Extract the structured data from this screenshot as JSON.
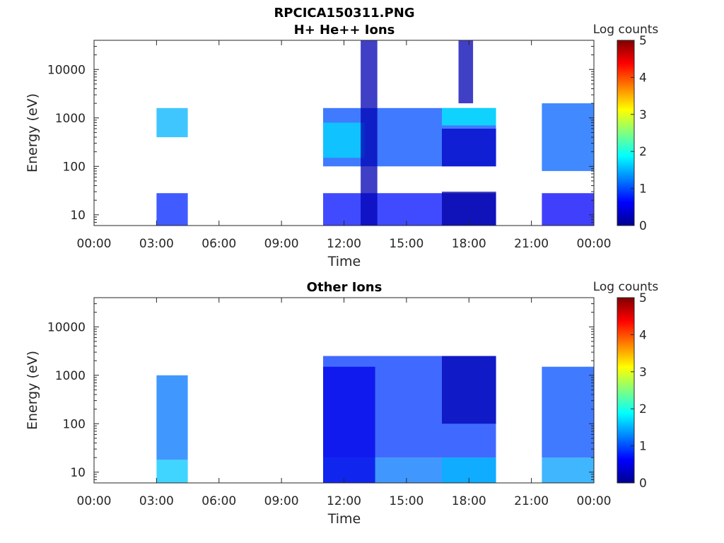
{
  "figure_title": "RPCICA150311.PNG",
  "chart_data": [
    {
      "type": "heatmap",
      "title": "H+ He++ Ions",
      "xlabel": "Time",
      "ylabel": "Energy (eV)",
      "x_range_hours": [
        0,
        24
      ],
      "x_ticks": [
        "00:00",
        "03:00",
        "06:00",
        "09:00",
        "12:00",
        "15:00",
        "18:00",
        "21:00",
        "00:00"
      ],
      "y_scale": "log",
      "y_range_eV": [
        6,
        40000
      ],
      "y_ticks": [
        10,
        100,
        1000,
        10000
      ],
      "y_tick_labels": [
        "10",
        "100",
        "1000",
        "10000"
      ],
      "colorbar": {
        "label": "Log counts",
        "min": 0,
        "max": 5,
        "ticks": [
          "0",
          "1",
          "2",
          "3",
          "4",
          "5"
        ],
        "colormap": "jet"
      },
      "bands": [
        {
          "t_start": 3.0,
          "t_end": 4.5,
          "e_min": 6,
          "e_max": 28,
          "log_counts": 0.8
        },
        {
          "t_start": 3.0,
          "t_end": 4.5,
          "e_min": 400,
          "e_max": 1600,
          "log_counts": 1.5
        },
        {
          "t_start": 11.0,
          "t_end": 19.3,
          "e_min": 6,
          "e_max": 28,
          "log_counts": 0.7
        },
        {
          "t_start": 11.0,
          "t_end": 19.3,
          "e_min": 100,
          "e_max": 1600,
          "log_counts": 1.0
        },
        {
          "t_start": 11.0,
          "t_end": 13.0,
          "e_min": 150,
          "e_max": 800,
          "log_counts": 1.7
        },
        {
          "t_start": 12.8,
          "t_end": 13.6,
          "e_min": 6,
          "e_max": 40000,
          "log_counts": 0.2
        },
        {
          "t_start": 16.7,
          "t_end": 19.3,
          "e_min": 6,
          "e_max": 30,
          "log_counts": 0.1
        },
        {
          "t_start": 16.7,
          "t_end": 19.3,
          "e_min": 100,
          "e_max": 600,
          "log_counts": 0.3
        },
        {
          "t_start": 16.7,
          "t_end": 19.3,
          "e_min": 700,
          "e_max": 1600,
          "log_counts": 1.8
        },
        {
          "t_start": 17.5,
          "t_end": 18.2,
          "e_min": 2000,
          "e_max": 40000,
          "log_counts": 0.2
        },
        {
          "t_start": 21.5,
          "t_end": 24.0,
          "e_min": 6,
          "e_max": 28,
          "log_counts": 0.6
        },
        {
          "t_start": 21.5,
          "t_end": 24.0,
          "e_min": 80,
          "e_max": 2000,
          "log_counts": 1.1
        }
      ]
    },
    {
      "type": "heatmap",
      "title": "Other Ions",
      "xlabel": "Time",
      "ylabel": "Energy (eV)",
      "x_range_hours": [
        0,
        24
      ],
      "x_ticks": [
        "00:00",
        "03:00",
        "06:00",
        "09:00",
        "12:00",
        "15:00",
        "18:00",
        "21:00",
        "00:00"
      ],
      "y_scale": "log",
      "y_range_eV": [
        6,
        40000
      ],
      "y_ticks": [
        10,
        100,
        1000,
        10000
      ],
      "y_tick_labels": [
        "10",
        "100",
        "1000",
        "10000"
      ],
      "colorbar": {
        "label": "Log counts",
        "min": 0,
        "max": 5,
        "ticks": [
          "0",
          "1",
          "2",
          "3",
          "4",
          "5"
        ],
        "colormap": "jet"
      },
      "bands": [
        {
          "t_start": 3.0,
          "t_end": 4.5,
          "e_min": 6,
          "e_max": 18,
          "log_counts": 1.6
        },
        {
          "t_start": 3.0,
          "t_end": 4.5,
          "e_min": 18,
          "e_max": 1000,
          "log_counts": 1.2
        },
        {
          "t_start": 11.0,
          "t_end": 19.3,
          "e_min": 6,
          "e_max": 20,
          "log_counts": 1.2
        },
        {
          "t_start": 11.0,
          "t_end": 19.3,
          "e_min": 20,
          "e_max": 2500,
          "log_counts": 0.9
        },
        {
          "t_start": 11.0,
          "t_end": 13.5,
          "e_min": 6,
          "e_max": 1500,
          "log_counts": 0.5
        },
        {
          "t_start": 16.7,
          "t_end": 19.3,
          "e_min": 6,
          "e_max": 20,
          "log_counts": 1.5
        },
        {
          "t_start": 16.7,
          "t_end": 19.3,
          "e_min": 100,
          "e_max": 2500,
          "log_counts": 0.2
        },
        {
          "t_start": 21.5,
          "t_end": 24.0,
          "e_min": 6,
          "e_max": 20,
          "log_counts": 1.4
        },
        {
          "t_start": 21.5,
          "t_end": 24.0,
          "e_min": 20,
          "e_max": 1500,
          "log_counts": 1.0
        }
      ]
    }
  ]
}
